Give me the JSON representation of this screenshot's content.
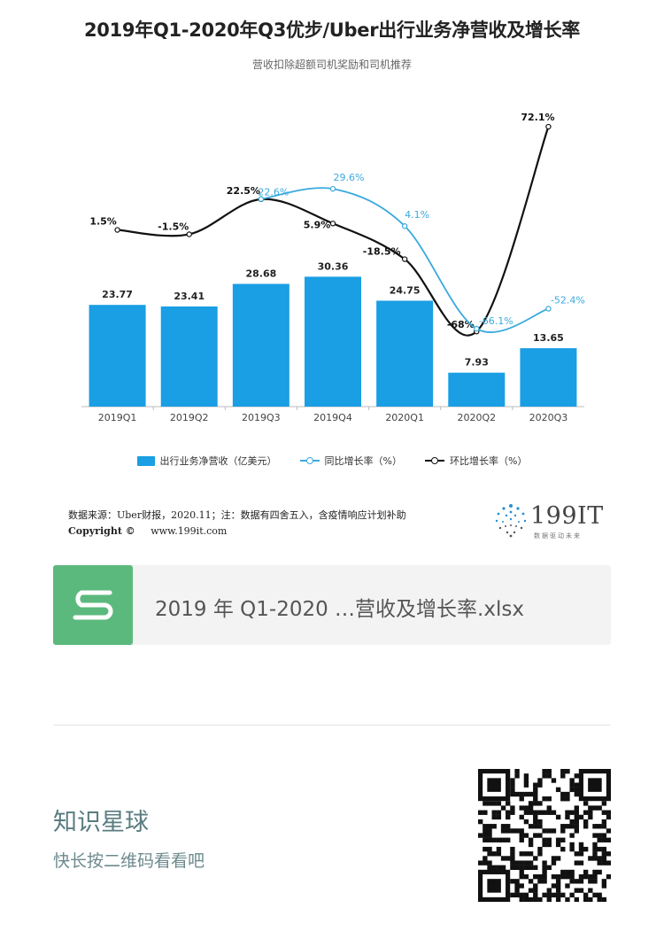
{
  "chart_data": {
    "type": "bar",
    "title": "2019年Q1-2020年Q3优步/Uber出行业务净营收及增长率",
    "subtitle": "营收扣除超额司机奖励和司机推荐",
    "categories": [
      "2019Q1",
      "2019Q2",
      "2019Q3",
      "2019Q4",
      "2020Q1",
      "2020Q2",
      "2020Q3"
    ],
    "series": [
      {
        "name": "出行业务净营收（亿美元）",
        "type": "bar",
        "color": "#1a9ee4",
        "values": [
          23.77,
          23.41,
          28.68,
          30.36,
          24.75,
          7.93,
          13.65
        ],
        "labels": [
          "23.77",
          "23.41",
          "28.68",
          "30.36",
          "24.75",
          "7.93",
          "13.65"
        ]
      },
      {
        "name": "同比增长率（%）",
        "type": "line",
        "color": "#3aa9de",
        "values": [
          null,
          null,
          22.6,
          29.6,
          4.1,
          -66.1,
          -52.4
        ],
        "labels": [
          "",
          "",
          "22.6%",
          "29.6%",
          "4.1%",
          "-66.1%",
          "-52.4%"
        ]
      },
      {
        "name": "环比增长率（%）",
        "type": "line",
        "color": "#111111",
        "values": [
          1.5,
          -1.5,
          22.5,
          5.9,
          -18.5,
          -68,
          72.1
        ],
        "labels": [
          "1.5%",
          "-1.5%",
          "22.5%",
          "5.9%",
          "-18.5%",
          "-68%",
          "72.1%"
        ]
      }
    ],
    "legend": "bottom",
    "grid": false
  },
  "footer": {
    "source": "数据来源：Uber财报，2020.11；注：数据有四舍五入，含疫情响应计划补助",
    "copyright_label": "Copyright ©",
    "website": "www.199it.com",
    "logo_text": "199IT",
    "logo_sub": "数据驱动未来"
  },
  "attachment": {
    "file_name": "2019 年 Q1-2020 …营收及增长率.xlsx",
    "icon": "spreadsheet-s-icon",
    "icon_color": "#5cb97e"
  },
  "promo": {
    "title": "知识星球",
    "subtitle": "快长按二维码看看吧",
    "qr_icon": "qr-code-icon"
  }
}
